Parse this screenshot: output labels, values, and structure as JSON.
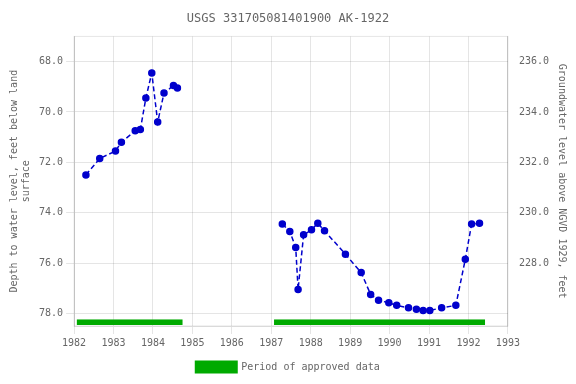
{
  "chart_data": {
    "type": "line",
    "title": "USGS 331705081401900 AK-1922",
    "y_label": "Depth to water level, feet below land\nsurface",
    "y2_label": "Groundwater level above NGVD 1929, feet",
    "xlim": [
      1982,
      1993
    ],
    "xticks": [
      1982,
      1983,
      1984,
      1985,
      1986,
      1987,
      1988,
      1989,
      1990,
      1991,
      1992,
      1993
    ],
    "ylim": [
      78.5,
      67.0
    ],
    "yticks": [
      {
        "value": 68.0,
        "label": "68.0"
      },
      {
        "value": 70.0,
        "label": "70.0"
      },
      {
        "value": 72.0,
        "label": "72.0"
      },
      {
        "value": 74.0,
        "label": "74.0"
      },
      {
        "value": 76.0,
        "label": "76.0"
      },
      {
        "value": 78.0,
        "label": "78.0"
      }
    ],
    "y2lim": [
      225.5,
      237.0
    ],
    "y2ticks": [
      {
        "value": 236.0,
        "label": "236.0"
      },
      {
        "value": 234.0,
        "label": "234.0"
      },
      {
        "value": 232.0,
        "label": "232.0"
      },
      {
        "value": 230.0,
        "label": "230.0"
      },
      {
        "value": 228.0,
        "label": "228.0"
      }
    ],
    "grid": true,
    "series": [
      {
        "color": "#0000cc",
        "marker": "circle",
        "line_style": "dashed",
        "x": [
          1982.3,
          1982.65,
          1983.05,
          1983.2,
          1983.55,
          1983.68,
          1983.82,
          1983.97,
          1984.12,
          1984.28,
          1984.52,
          1984.62
        ],
        "values": [
          72.5,
          71.85,
          71.55,
          71.2,
          70.75,
          70.7,
          69.45,
          68.45,
          70.4,
          69.25,
          68.95,
          69.05
        ]
      },
      {
        "color": "#0000cc",
        "marker": "circle",
        "line_style": "dashed",
        "x": [
          1987.28,
          1987.47,
          1987.62,
          1987.68,
          1987.82,
          1988.02,
          1988.18,
          1988.35,
          1988.88,
          1989.28,
          1989.52,
          1989.72,
          1989.98,
          1990.18,
          1990.48,
          1990.68,
          1990.85,
          1991.02,
          1991.32,
          1991.68,
          1991.92,
          1992.08,
          1992.28
        ],
        "values": [
          74.45,
          74.75,
          75.38,
          77.05,
          74.88,
          74.68,
          74.42,
          74.72,
          75.65,
          76.38,
          77.25,
          77.48,
          77.58,
          77.68,
          77.78,
          77.83,
          77.88,
          77.88,
          77.78,
          77.68,
          75.85,
          74.45,
          74.42
        ]
      }
    ],
    "periods": {
      "name": "Period of approved data",
      "color": "#00aa00",
      "ranges": [
        [
          1982.07,
          1984.75
        ],
        [
          1987.07,
          1992.42
        ]
      ],
      "y": 78.35,
      "height": 0.22
    },
    "legend": "bottom"
  }
}
